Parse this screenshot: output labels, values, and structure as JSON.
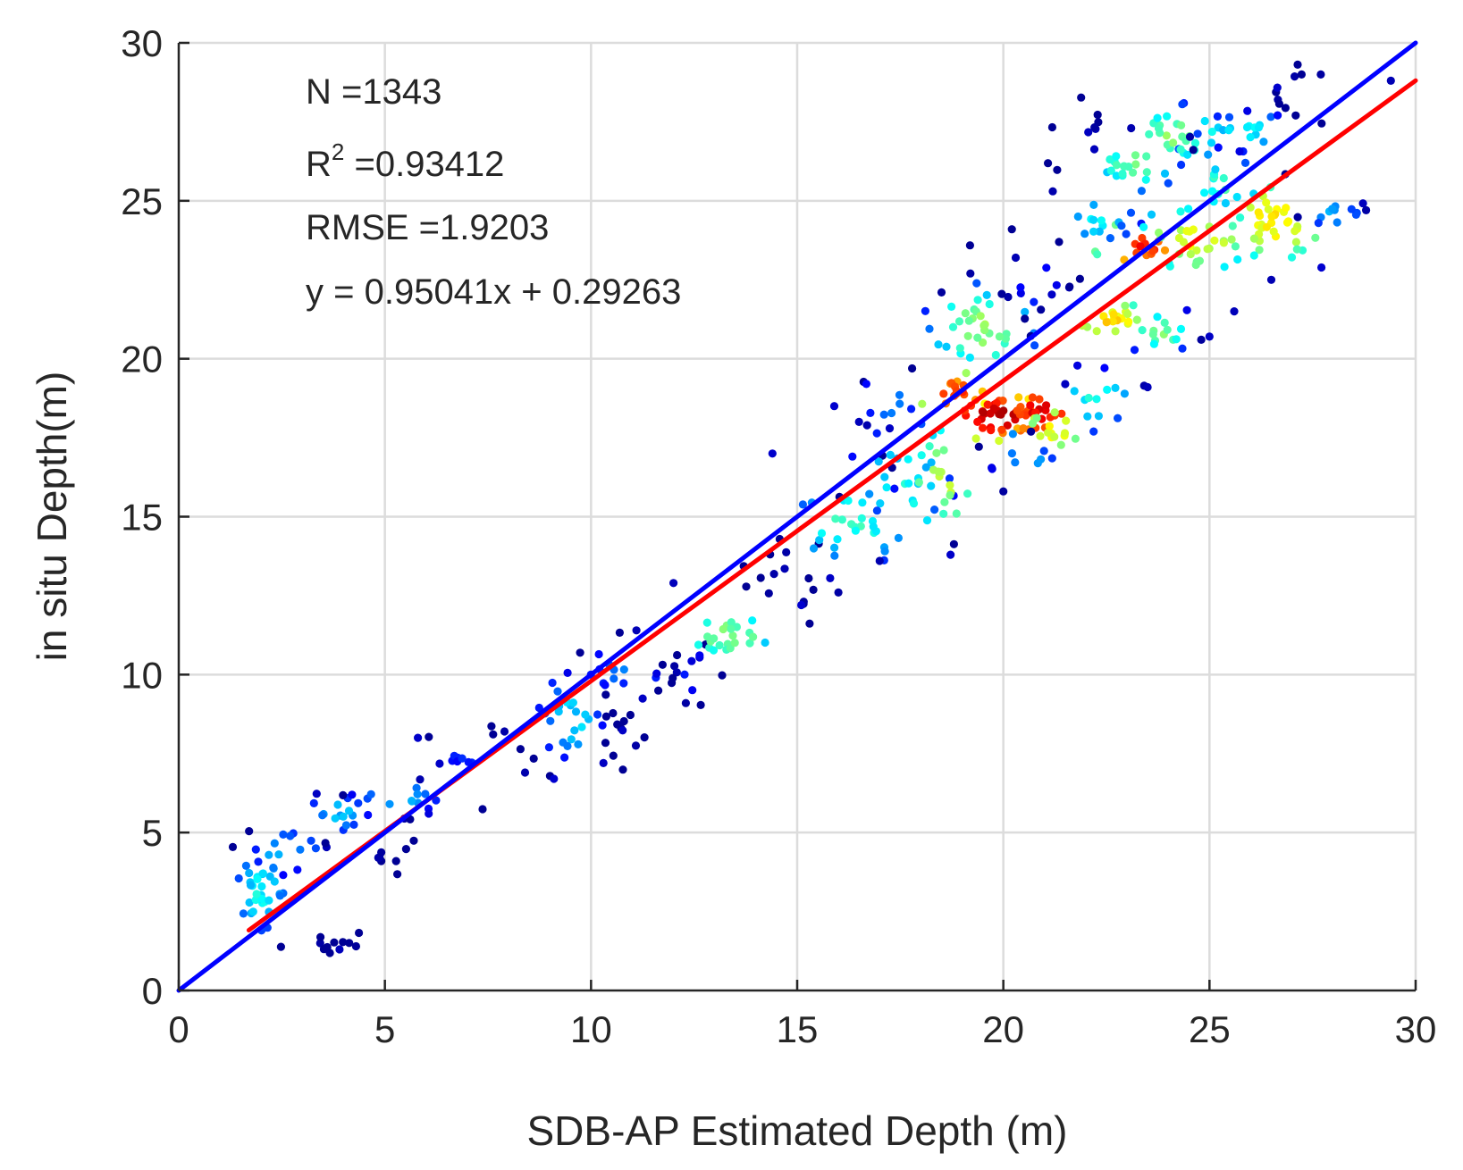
{
  "chart_data": {
    "type": "scatter",
    "title": "",
    "xlabel": "SDB-AP Estimated Depth (m)",
    "ylabel": "in situ Depth(m)",
    "xlim": [
      0,
      30
    ],
    "ylim": [
      0,
      30
    ],
    "xticks": [
      "0",
      "5",
      "10",
      "15",
      "20",
      "25",
      "30"
    ],
    "yticks": [
      "0",
      "5",
      "10",
      "15",
      "20",
      "25",
      "30"
    ],
    "grid": true,
    "colormap": "jet (point density)",
    "stats": {
      "n_label": "N =1343",
      "r2_prefix": "R",
      "r2_sup": "2",
      "r2_value": " =0.93412",
      "rmse_label": "RMSE =1.9203",
      "equation": "y = 0.95041x + 0.29263"
    },
    "lines": [
      {
        "role": "1:1 line",
        "color": "#0000ff",
        "slope": 1.0,
        "intercept": 0.0,
        "x": [
          0,
          30
        ]
      },
      {
        "role": "linear fit",
        "color": "#ff0000",
        "slope": 0.95041,
        "intercept": 0.29263,
        "x": [
          1.7,
          30
        ]
      }
    ],
    "clusters": [
      {
        "x": 2.0,
        "y": 3.2,
        "sx": 0.3,
        "sy": 0.7,
        "n": 35,
        "d": 0.38
      },
      {
        "x": 2.6,
        "y": 4.4,
        "sx": 0.5,
        "sy": 0.4,
        "n": 14,
        "d": 0.3
      },
      {
        "x": 3.6,
        "y": 1.6,
        "sx": 0.5,
        "sy": 0.2,
        "n": 10,
        "d": 0.05
      },
      {
        "x": 3.9,
        "y": 5.6,
        "sx": 0.4,
        "sy": 0.4,
        "n": 18,
        "d": 0.3
      },
      {
        "x": 5.4,
        "y": 6.1,
        "sx": 0.6,
        "sy": 0.3,
        "n": 16,
        "d": 0.3
      },
      {
        "x": 5.0,
        "y": 4.4,
        "sx": 0.3,
        "sy": 0.4,
        "n": 8,
        "d": 0.05
      },
      {
        "x": 7.2,
        "y": 7.2,
        "sx": 0.6,
        "sy": 0.5,
        "n": 14,
        "d": 0.18
      },
      {
        "x": 9.5,
        "y": 8.6,
        "sx": 0.4,
        "sy": 0.7,
        "n": 30,
        "d": 0.35
      },
      {
        "x": 10.8,
        "y": 10.1,
        "sx": 0.6,
        "sy": 0.5,
        "n": 18,
        "d": 0.22
      },
      {
        "x": 10.8,
        "y": 8.0,
        "sx": 0.4,
        "sy": 0.5,
        "n": 8,
        "d": 0.05
      },
      {
        "x": 12.5,
        "y": 10.0,
        "sx": 0.4,
        "sy": 0.6,
        "n": 12,
        "d": 0.15
      },
      {
        "x": 13.4,
        "y": 11.2,
        "sx": 0.5,
        "sy": 0.4,
        "n": 24,
        "d": 0.52
      },
      {
        "x": 14.8,
        "y": 12.8,
        "sx": 0.4,
        "sy": 0.7,
        "n": 14,
        "d": 0.08
      },
      {
        "x": 16.3,
        "y": 14.8,
        "sx": 0.7,
        "sy": 0.7,
        "n": 32,
        "d": 0.42
      },
      {
        "x": 17.6,
        "y": 16.2,
        "sx": 0.6,
        "sy": 0.8,
        "n": 24,
        "d": 0.38
      },
      {
        "x": 18.6,
        "y": 16.2,
        "sx": 0.5,
        "sy": 0.8,
        "n": 22,
        "d": 0.55
      },
      {
        "x": 17.3,
        "y": 18.7,
        "sx": 0.4,
        "sy": 0.5,
        "n": 10,
        "d": 0.28
      },
      {
        "x": 18.9,
        "y": 18.9,
        "sx": 0.4,
        "sy": 0.3,
        "n": 16,
        "d": 0.84
      },
      {
        "x": 19.8,
        "y": 18.2,
        "sx": 0.5,
        "sy": 0.3,
        "n": 38,
        "d": 0.96
      },
      {
        "x": 20.9,
        "y": 18.3,
        "sx": 0.4,
        "sy": 0.35,
        "n": 22,
        "d": 0.9
      },
      {
        "x": 21.2,
        "y": 17.8,
        "sx": 0.4,
        "sy": 0.4,
        "n": 16,
        "d": 0.62
      },
      {
        "x": 19.5,
        "y": 21.0,
        "sx": 0.6,
        "sy": 0.6,
        "n": 36,
        "d": 0.52
      },
      {
        "x": 20.5,
        "y": 16.8,
        "sx": 0.5,
        "sy": 0.3,
        "n": 10,
        "d": 0.3
      },
      {
        "x": 22.2,
        "y": 18.7,
        "sx": 0.5,
        "sy": 0.5,
        "n": 14,
        "d": 0.38
      },
      {
        "x": 22.6,
        "y": 21.2,
        "sx": 0.5,
        "sy": 0.3,
        "n": 22,
        "d": 0.65
      },
      {
        "x": 23.8,
        "y": 20.9,
        "sx": 0.4,
        "sy": 0.3,
        "n": 14,
        "d": 0.5
      },
      {
        "x": 20.8,
        "y": 22.5,
        "sx": 0.6,
        "sy": 0.9,
        "n": 16,
        "d": 0.12
      },
      {
        "x": 23.3,
        "y": 23.6,
        "sx": 0.4,
        "sy": 0.3,
        "n": 16,
        "d": 0.86
      },
      {
        "x": 22.3,
        "y": 24.4,
        "sx": 0.5,
        "sy": 0.4,
        "n": 14,
        "d": 0.35
      },
      {
        "x": 24.7,
        "y": 23.8,
        "sx": 0.7,
        "sy": 0.5,
        "n": 34,
        "d": 0.6
      },
      {
        "x": 26.6,
        "y": 24.4,
        "sx": 0.6,
        "sy": 0.6,
        "n": 36,
        "d": 0.64
      },
      {
        "x": 28.0,
        "y": 24.6,
        "sx": 0.4,
        "sy": 0.3,
        "n": 12,
        "d": 0.3
      },
      {
        "x": 23.2,
        "y": 26.2,
        "sx": 0.5,
        "sy": 0.4,
        "n": 22,
        "d": 0.48
      },
      {
        "x": 24.2,
        "y": 27.1,
        "sx": 0.6,
        "sy": 0.4,
        "n": 30,
        "d": 0.5
      },
      {
        "x": 25.9,
        "y": 27.2,
        "sx": 0.6,
        "sy": 0.3,
        "n": 20,
        "d": 0.38
      },
      {
        "x": 25.4,
        "y": 25.5,
        "sx": 0.5,
        "sy": 0.4,
        "n": 16,
        "d": 0.45
      },
      {
        "x": 26.8,
        "y": 28.6,
        "sx": 0.5,
        "sy": 0.6,
        "n": 10,
        "d": 0.05
      },
      {
        "x": 22.0,
        "y": 26.8,
        "sx": 0.5,
        "sy": 0.7,
        "n": 10,
        "d": 0.08
      }
    ],
    "outliers": [
      [
        4.3,
        1.4
      ],
      [
        3.9,
        1.3
      ],
      [
        5.8,
        8.0
      ],
      [
        7.9,
        8.2
      ],
      [
        8.4,
        6.9
      ],
      [
        9.1,
        6.7
      ],
      [
        10.3,
        7.2
      ],
      [
        11.1,
        11.4
      ],
      [
        12.0,
        12.9
      ],
      [
        12.3,
        9.1
      ],
      [
        14.4,
        17.0
      ],
      [
        15.1,
        12.2
      ],
      [
        15.9,
        18.5
      ],
      [
        16.0,
        12.6
      ],
      [
        16.5,
        18.0
      ],
      [
        17.0,
        13.6
      ],
      [
        18.5,
        22.1
      ],
      [
        19.2,
        22.7
      ],
      [
        20.0,
        15.8
      ],
      [
        20.3,
        23.2
      ],
      [
        21.2,
        25.3
      ],
      [
        21.5,
        19.2
      ],
      [
        23.1,
        27.3
      ],
      [
        23.5,
        19.1
      ],
      [
        25.0,
        20.7
      ],
      [
        25.6,
        21.5
      ],
      [
        26.5,
        22.5
      ],
      [
        28.8,
        24.7
      ],
      [
        29.4,
        28.8
      ],
      [
        27.7,
        29.0
      ],
      [
        24.8,
        20.6
      ]
    ]
  }
}
